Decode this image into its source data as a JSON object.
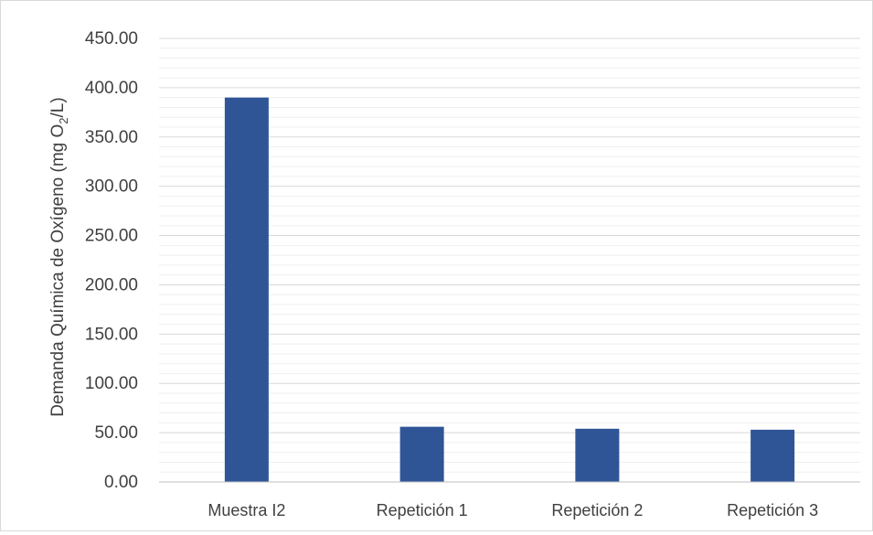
{
  "chart_data": {
    "type": "bar",
    "title": "",
    "xlabel": "",
    "ylabel_parts": {
      "main": "Demanda Química de Oxígeno (mg O",
      "sub": "2",
      "tail": "/L)"
    },
    "categories": [
      "Muestra I2",
      "Repetición 1",
      "Repetición 2",
      "Repetición 3"
    ],
    "values": [
      390,
      56,
      54,
      53
    ],
    "ylim": [
      0,
      450
    ],
    "yticks": [
      "0.00",
      "50.00",
      "100.00",
      "150.00",
      "200.00",
      "250.00",
      "300.00",
      "350.00",
      "400.00",
      "450.00"
    ],
    "major_step": 50,
    "minor_step": 10,
    "grid": true,
    "legend": "none",
    "colors": {
      "bar": "#2f5597",
      "major_grid": "#d9d9d9",
      "minor_grid": "#efefef",
      "axis": "#bfbfbf",
      "text": "#404040"
    }
  }
}
